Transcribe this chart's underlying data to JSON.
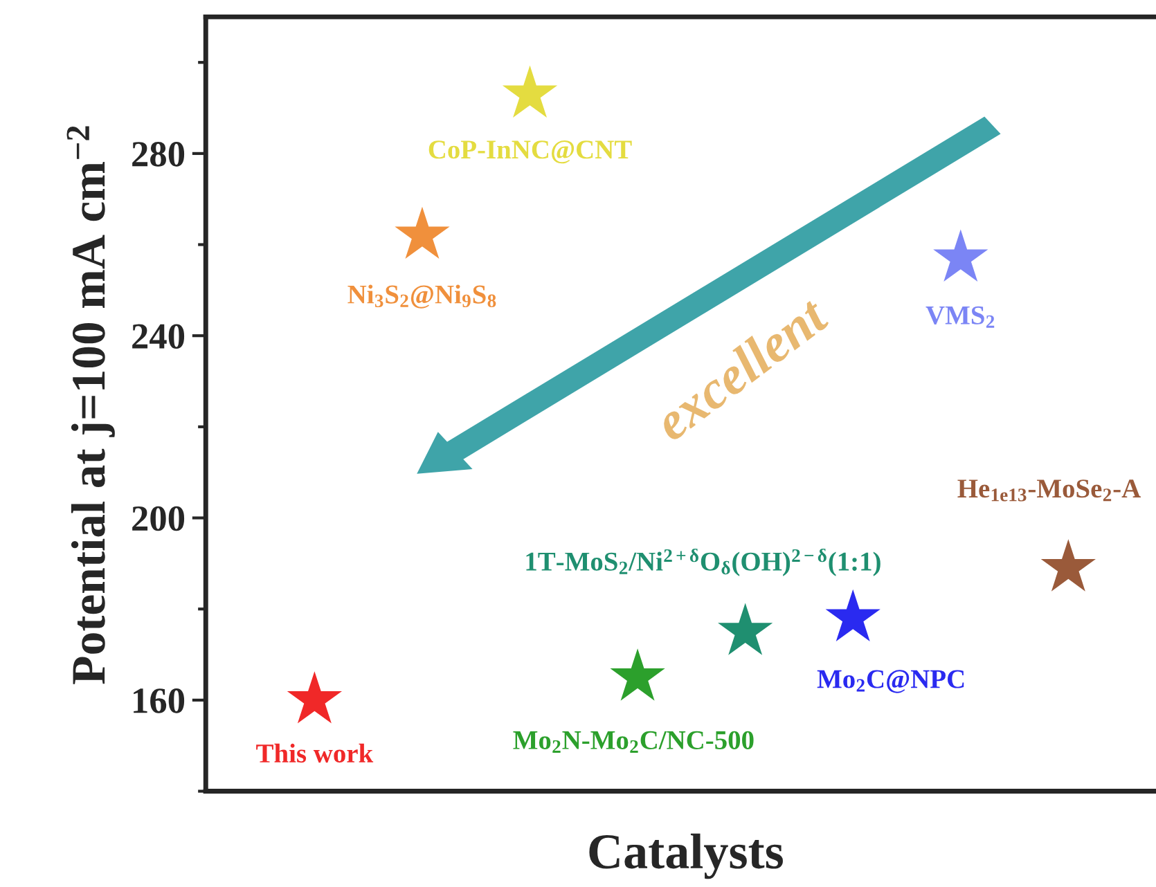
{
  "chart_data": {
    "type": "scatter",
    "xlabel": "Catalysts",
    "ylabel": "Potential at j=100 mA cm$^{−2}$",
    "categories": [
      null,
      null,
      null,
      null,
      null,
      null,
      null,
      null
    ],
    "series": [
      {
        "name": "This work",
        "color": "#f02828",
        "values": [
          160,
          null,
          null,
          null,
          null,
          null,
          null,
          null
        ]
      },
      {
        "name": "Ni$_{3}$S$_{2}$@Ni$_{9}$S$_{8}$",
        "color": "#f0903c",
        "values": [
          null,
          262,
          null,
          null,
          null,
          null,
          null,
          null
        ]
      },
      {
        "name": "CoP-InNC@CNT",
        "color": "#e4dc40",
        "values": [
          null,
          null,
          293,
          null,
          null,
          null,
          null,
          null
        ]
      },
      {
        "name": "Mo$_{2}$N-Mo$_{2}$C/NC-500",
        "color": "#2ca02c",
        "values": [
          null,
          null,
          null,
          165,
          null,
          null,
          null,
          null
        ]
      },
      {
        "name": "1T-MoS$_{2}$/Ni$^{2+δ}$O$_{δ}$(OH)$^{2−δ}$(1:1)",
        "color": "#1f8f70",
        "values": [
          null,
          null,
          null,
          null,
          175,
          null,
          null,
          null
        ]
      },
      {
        "name": "Mo$_{2}$C@NPC",
        "color": "#2a2af0",
        "values": [
          null,
          null,
          null,
          null,
          null,
          178,
          null,
          null
        ]
      },
      {
        "name": "VMS$_{2}$",
        "color": "#7b85f5",
        "values": [
          null,
          null,
          null,
          null,
          null,
          null,
          257,
          null
        ]
      },
      {
        "name": "He$_{1e13}$-MoSe$_{2}$-A",
        "color": "#9a5a3a",
        "values": [
          null,
          null,
          null,
          null,
          null,
          null,
          null,
          189
        ]
      }
    ],
    "annotations": [
      "excellent"
    ],
    "marker": "star",
    "ylim": [
      140,
      310
    ],
    "yticks": [
      160,
      200,
      240,
      280
    ],
    "tick_labels": "y",
    "legend": false,
    "grid": false
  }
}
